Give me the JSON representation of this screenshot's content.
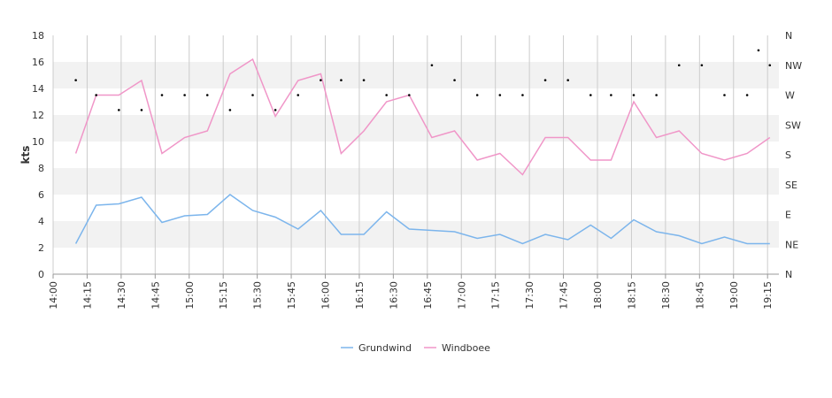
{
  "chart_data": {
    "type": "line",
    "ylabel": "kts",
    "ylim": [
      0,
      18
    ],
    "y_ticks": [
      "0",
      "2",
      "4",
      "6",
      "8",
      "10",
      "12",
      "14",
      "16",
      "18"
    ],
    "right_axis": {
      "type": "compass",
      "ticks": [
        "N",
        "NE",
        "E",
        "SE",
        "S",
        "SW",
        "W",
        "NW",
        "N"
      ]
    },
    "x_ticks": [
      "14:00",
      "14:15",
      "14:30",
      "14:45",
      "15:00",
      "15:15",
      "15:30",
      "15:45",
      "16:00",
      "16:15",
      "16:30",
      "16:45",
      "17:00",
      "17:15",
      "17:30",
      "17:45",
      "18:00",
      "18:15",
      "18:30",
      "18:45",
      "19:00",
      "19:15"
    ],
    "x_range": [
      "14:00",
      "19:20"
    ],
    "grid": true,
    "legend_position": "bottom",
    "colors": {
      "Grundwind": "#7cb5ec",
      "Windboee": "#f096c8",
      "direction": "#000000",
      "band": "#f2f2f2",
      "grid": "#cccccc"
    },
    "series": [
      {
        "name": "Grundwind",
        "x": [
          "14:10",
          "14:19",
          "14:29",
          "14:39",
          "14:48",
          "14:58",
          "15:08",
          "15:18",
          "15:28",
          "15:38",
          "15:48",
          "15:58",
          "16:07",
          "16:17",
          "16:27",
          "16:37",
          "16:47",
          "16:57",
          "17:07",
          "17:17",
          "17:27",
          "17:37",
          "17:47",
          "17:57",
          "18:06",
          "18:16",
          "18:26",
          "18:36",
          "18:46",
          "18:56",
          "19:06",
          "19:16"
        ],
        "values": [
          2.3,
          5.2,
          5.3,
          5.8,
          3.9,
          4.4,
          4.5,
          6.0,
          4.8,
          4.3,
          3.4,
          4.8,
          3.0,
          3.0,
          4.7,
          3.4,
          3.3,
          3.2,
          2.7,
          3.0,
          2.3,
          3.0,
          2.6,
          3.7,
          2.7,
          4.1,
          3.2,
          2.9,
          2.3,
          2.8,
          2.3,
          2.3
        ]
      },
      {
        "name": "Windboee",
        "x": [
          "14:10",
          "14:19",
          "14:29",
          "14:39",
          "14:48",
          "14:58",
          "15:08",
          "15:18",
          "15:28",
          "15:38",
          "15:48",
          "15:58",
          "16:07",
          "16:17",
          "16:27",
          "16:37",
          "16:47",
          "16:57",
          "17:07",
          "17:17",
          "17:27",
          "17:37",
          "17:47",
          "17:57",
          "18:06",
          "18:16",
          "18:26",
          "18:36",
          "18:46",
          "18:56",
          "19:06",
          "19:16"
        ],
        "values": [
          9.1,
          13.5,
          13.5,
          14.6,
          9.1,
          10.3,
          10.8,
          15.1,
          16.2,
          11.9,
          14.6,
          15.1,
          9.1,
          10.8,
          13.0,
          13.5,
          10.3,
          10.8,
          8.6,
          9.1,
          7.5,
          10.3,
          10.3,
          8.6,
          8.6,
          13.0,
          10.3,
          10.8,
          9.1,
          8.6,
          9.1,
          10.3
        ]
      },
      {
        "name": "direction",
        "x": [
          "14:10",
          "14:19",
          "14:29",
          "14:39",
          "14:48",
          "14:58",
          "15:08",
          "15:18",
          "15:28",
          "15:38",
          "15:48",
          "15:58",
          "16:07",
          "16:17",
          "16:27",
          "16:37",
          "16:47",
          "16:57",
          "17:07",
          "17:17",
          "17:27",
          "17:37",
          "17:47",
          "17:57",
          "18:06",
          "18:16",
          "18:26",
          "18:36",
          "18:46",
          "18:56",
          "19:06",
          "19:11",
          "19:16"
        ],
        "compass": [
          "WNW",
          "W",
          "WSW",
          "WSW",
          "W",
          "W",
          "W",
          "WSW",
          "W",
          "WSW",
          "W",
          "WNW",
          "WNW",
          "WNW",
          "W",
          "W",
          "NW",
          "WNW",
          "W",
          "W",
          "W",
          "WNW",
          "WNW",
          "W",
          "W",
          "W",
          "W",
          "NW",
          "NW",
          "W",
          "W",
          "NNW",
          "NW"
        ]
      }
    ]
  }
}
